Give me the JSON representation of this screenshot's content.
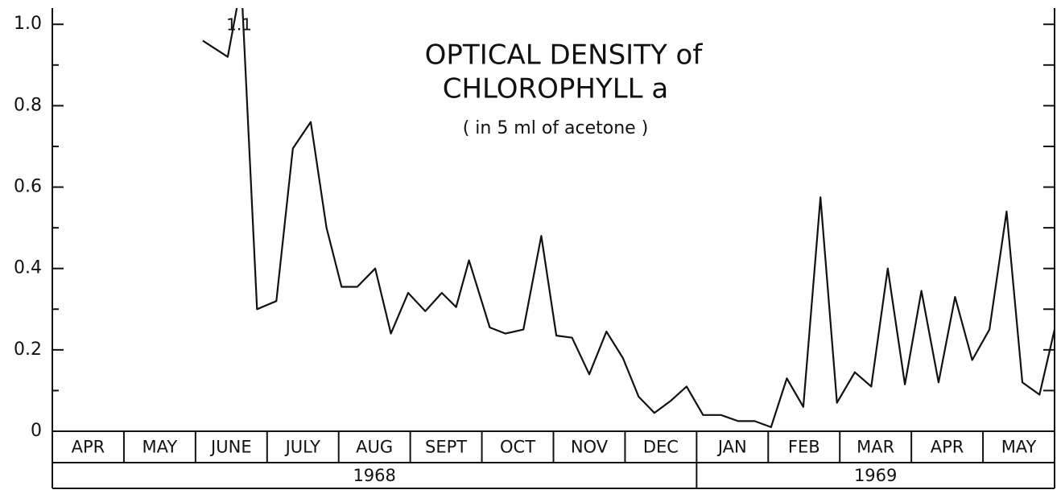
{
  "chart_data": {
    "type": "line",
    "title": [
      "OPTICAL DENSITY of",
      "CHLOROPHYLL a"
    ],
    "subtitle": "( in 5 ml of acetone )",
    "annotation": "1.1",
    "years": [
      {
        "name": "1968",
        "months": [
          "APR",
          "MAY",
          "JUNE",
          "JULY",
          "AUG",
          "SEPT",
          "OCT",
          "NOV",
          "DEC"
        ]
      },
      {
        "name": "1969",
        "months": [
          "JAN",
          "FEB",
          "MAR",
          "APR",
          "MAY"
        ]
      }
    ],
    "xlim": [
      0,
      14
    ],
    "x": [
      2.1,
      2.45,
      2.64,
      2.86,
      3.13,
      3.36,
      3.61,
      3.83,
      4.04,
      4.26,
      4.51,
      4.73,
      4.97,
      5.21,
      5.44,
      5.64,
      5.82,
      6.11,
      6.33,
      6.58,
      6.83,
      7.04,
      7.26,
      7.5,
      7.74,
      7.97,
      8.19,
      8.41,
      8.64,
      8.86,
      9.09,
      9.34,
      9.58,
      9.81,
      10.04,
      10.26,
      10.49,
      10.73,
      10.96,
      11.21,
      11.44,
      11.67,
      11.91,
      12.14,
      12.38,
      12.61,
      12.85,
      13.09,
      13.33,
      13.55,
      13.79,
      14.0
    ],
    "values": [
      0.96,
      0.92,
      1.1,
      0.3,
      0.32,
      0.695,
      0.76,
      0.5,
      0.355,
      0.355,
      0.4,
      0.24,
      0.34,
      0.295,
      0.34,
      0.305,
      0.42,
      0.255,
      0.24,
      0.25,
      0.48,
      0.235,
      0.23,
      0.14,
      0.245,
      0.18,
      0.085,
      0.045,
      0.075,
      0.11,
      0.04,
      0.04,
      0.025,
      0.025,
      0.01,
      0.13,
      0.06,
      0.575,
      0.07,
      0.145,
      0.11,
      0.4,
      0.115,
      0.345,
      0.12,
      0.33,
      0.175,
      0.25,
      0.54,
      0.12,
      0.09,
      0.25
    ],
    "color": "#111111",
    "ylim": [
      0,
      1.04
    ],
    "yticks": [
      0,
      0.2,
      0.4,
      0.6,
      0.8,
      {
        "value": 1,
        "label": "1.0"
      }
    ],
    "minor_yticks": [
      0.1,
      0.3,
      0.5,
      0.7,
      0.9
    ]
  }
}
